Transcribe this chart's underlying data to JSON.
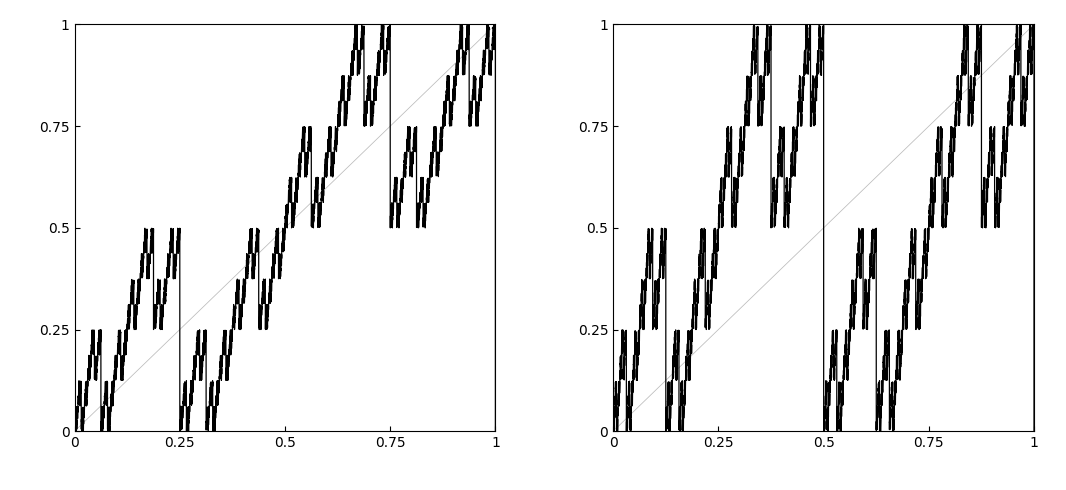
{
  "xlim": [
    0,
    1
  ],
  "ylim": [
    0,
    1
  ],
  "xticks": [
    0,
    0.25,
    0.5,
    0.75,
    1
  ],
  "yticks": [
    0,
    0.25,
    0.5,
    0.75,
    1
  ],
  "xtick_labels": [
    "0",
    "0.25",
    "0.5",
    "0.75",
    "1"
  ],
  "ytick_labels": [
    "0",
    "0.25",
    "0.5",
    "0.75",
    "1"
  ],
  "n_points": 12000,
  "figsize": [
    10.66,
    4.9
  ],
  "dpi": 100,
  "thick_lw": 0.9,
  "thin_lw": 0.55,
  "thin_color": "#bbbbbb"
}
